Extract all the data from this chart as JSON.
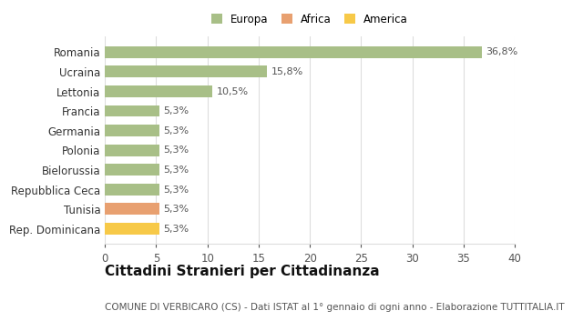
{
  "categories": [
    "Rep. Dominicana",
    "Tunisia",
    "Repubblica Ceca",
    "Bielorussia",
    "Polonia",
    "Germania",
    "Francia",
    "Lettonia",
    "Ucraina",
    "Romania"
  ],
  "values": [
    5.3,
    5.3,
    5.3,
    5.3,
    5.3,
    5.3,
    5.3,
    10.5,
    15.8,
    36.8
  ],
  "labels": [
    "5,3%",
    "5,3%",
    "5,3%",
    "5,3%",
    "5,3%",
    "5,3%",
    "5,3%",
    "10,5%",
    "15,8%",
    "36,8%"
  ],
  "colors": [
    "#f7c948",
    "#e8a070",
    "#a8bf87",
    "#a8bf87",
    "#a8bf87",
    "#a8bf87",
    "#a8bf87",
    "#a8bf87",
    "#a8bf87",
    "#a8bf87"
  ],
  "legend": [
    {
      "label": "Europa",
      "color": "#a8bf87"
    },
    {
      "label": "Africa",
      "color": "#e8a070"
    },
    {
      "label": "America",
      "color": "#f7c948"
    }
  ],
  "xlim": [
    0,
    40
  ],
  "xticks": [
    0,
    5,
    10,
    15,
    20,
    25,
    30,
    35,
    40
  ],
  "title": "Cittadini Stranieri per Cittadinanza",
  "subtitle": "COMUNE DI VERBICARO (CS) - Dati ISTAT al 1° gennaio di ogni anno - Elaborazione TUTTITALIA.IT",
  "bg_color": "#ffffff",
  "grid_color": "#dddddd",
  "bar_height": 0.6,
  "label_fontsize": 8,
  "title_fontsize": 11,
  "subtitle_fontsize": 7.5,
  "tick_fontsize": 8.5
}
